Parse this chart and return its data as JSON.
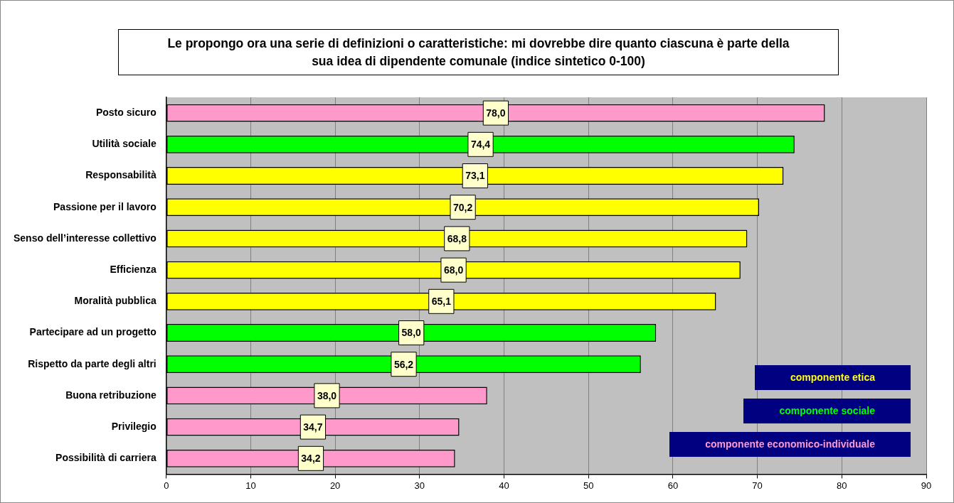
{
  "chart_data": {
    "type": "bar",
    "orientation": "horizontal",
    "stacked": true,
    "title": "Le propongo ora una serie di definizioni o caratteristiche: mi dovrebbe dire quanto ciascuna è parte della sua idea di dipendente comunale (indice sintetico 0-100)",
    "categories": [
      "Posto sicuro",
      "Utilità sociale",
      "Responsabilità",
      "Passione per il lavoro",
      "Senso dell’interesse collettivo",
      "Efficienza",
      "Moralità pubblica",
      "Partecipare ad un progetto",
      "Rispetto da parte degli altri",
      "Buona retribuzione",
      "Privilegio",
      "Possibilità di carriera"
    ],
    "series": [
      {
        "name": "componente etica",
        "color": "#ffff00",
        "values": [
          null,
          null,
          73.1,
          70.2,
          68.8,
          68.0,
          65.1,
          null,
          null,
          null,
          null,
          null
        ],
        "value_labels": [
          null,
          null,
          "73,1",
          "70,2",
          "68,8",
          "68,0",
          "65,1",
          null,
          null,
          null,
          null,
          null
        ]
      },
      {
        "name": "componente sociale",
        "color": "#00ff00",
        "values": [
          null,
          74.4,
          null,
          null,
          null,
          null,
          null,
          58.0,
          56.2,
          null,
          null,
          null
        ],
        "value_labels": [
          null,
          "74,4",
          null,
          null,
          null,
          null,
          null,
          "58,0",
          "56,2",
          null,
          null,
          null
        ]
      },
      {
        "name": "componente economico-individuale",
        "color": "#ff99cc",
        "values": [
          78.0,
          null,
          null,
          null,
          null,
          null,
          null,
          null,
          null,
          38.0,
          34.7,
          34.2
        ],
        "value_labels": [
          "78,0",
          null,
          null,
          null,
          null,
          null,
          null,
          null,
          null,
          "38,0",
          "34,7",
          "34,2"
        ]
      }
    ],
    "xlim": [
      0,
      90
    ],
    "xticks": [
      0,
      10,
      20,
      30,
      40,
      50,
      60,
      70,
      80,
      90
    ],
    "grid": "x",
    "legend": "bottom right"
  }
}
